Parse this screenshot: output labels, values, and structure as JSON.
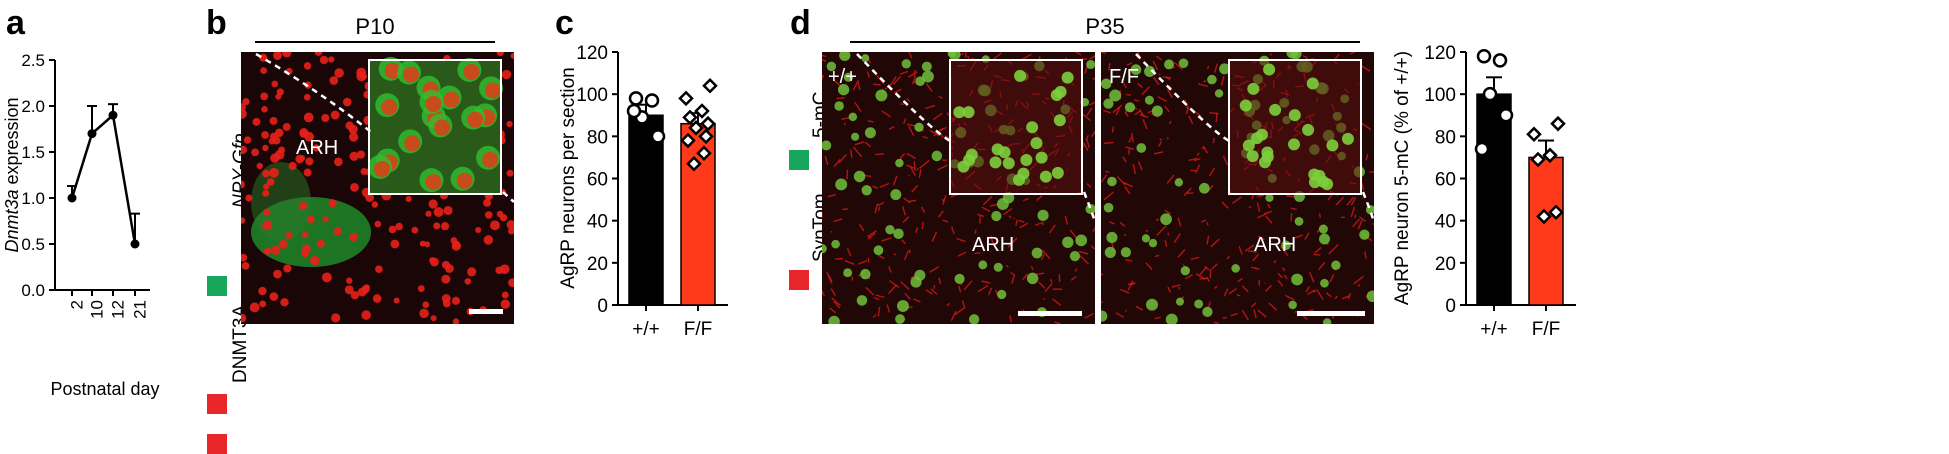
{
  "panels": {
    "a": "a",
    "b": "b",
    "c": "c",
    "d": "d"
  },
  "colors": {
    "green": "#1aa65a",
    "red": "#e8272a",
    "bar_ff": "#ff3a1a",
    "bar_wt": "#000000"
  },
  "panel_b": {
    "header": "P10",
    "legend_green": "NPY-Gfp",
    "legend_red": "DNMT3A",
    "region_label": "ARH"
  },
  "panel_d": {
    "header": "P35",
    "legend_green": "5-mC",
    "legend_red": "SynTom,",
    "left_image_label": "+/+",
    "right_image_label": "F/F",
    "region_label_left": "ARH",
    "region_label_right": "ARH"
  },
  "chart_data": [
    {
      "id": "a",
      "type": "line",
      "xlabel": "Postnatal day",
      "ylabel_italic": "Dnmt3a",
      "ylabel_rest": " expression",
      "categories": [
        "2",
        "10",
        "12",
        "21"
      ],
      "values": [
        1.0,
        1.7,
        1.9,
        0.5
      ],
      "error_up": [
        0.13,
        0.3,
        0.12,
        0.33
      ],
      "ylim": [
        0,
        2.5
      ],
      "yticks": [
        "0.0",
        "0.5",
        "1.0",
        "1.5",
        "2.0",
        "2.5"
      ],
      "ytick_values": [
        0,
        0.5,
        1.0,
        1.5,
        2.0,
        2.5
      ],
      "grid": false
    },
    {
      "id": "c",
      "type": "bar",
      "ylabel": "AgRP neurons per section",
      "categories": [
        "+/+",
        "F/F"
      ],
      "values": [
        90,
        86
      ],
      "error_up": [
        5,
        5
      ],
      "ylim": [
        0,
        120
      ],
      "yticks": [
        "0",
        "20",
        "40",
        "60",
        "80",
        "100",
        "120"
      ],
      "ytick_values": [
        0,
        20,
        40,
        60,
        80,
        100,
        120
      ],
      "points_wt": [
        98,
        97,
        89,
        80,
        92
      ],
      "points_ff": [
        104,
        98,
        92,
        89,
        86,
        84,
        80,
        78,
        72,
        67
      ],
      "grid": false
    },
    {
      "id": "d",
      "type": "bar",
      "ylabel": "AgRP neuron 5-mC (% of +/+)",
      "categories": [
        "+/+",
        "F/F"
      ],
      "values": [
        100,
        70
      ],
      "error_up": [
        8,
        8
      ],
      "ylim": [
        0,
        120
      ],
      "yticks": [
        "0",
        "20",
        "40",
        "60",
        "80",
        "100",
        "120"
      ],
      "ytick_values": [
        0,
        20,
        40,
        60,
        80,
        100,
        120
      ],
      "points_wt": [
        118,
        116,
        100,
        90,
        74
      ],
      "points_ff": [
        86,
        81,
        71,
        69,
        44,
        42
      ],
      "grid": false
    }
  ]
}
